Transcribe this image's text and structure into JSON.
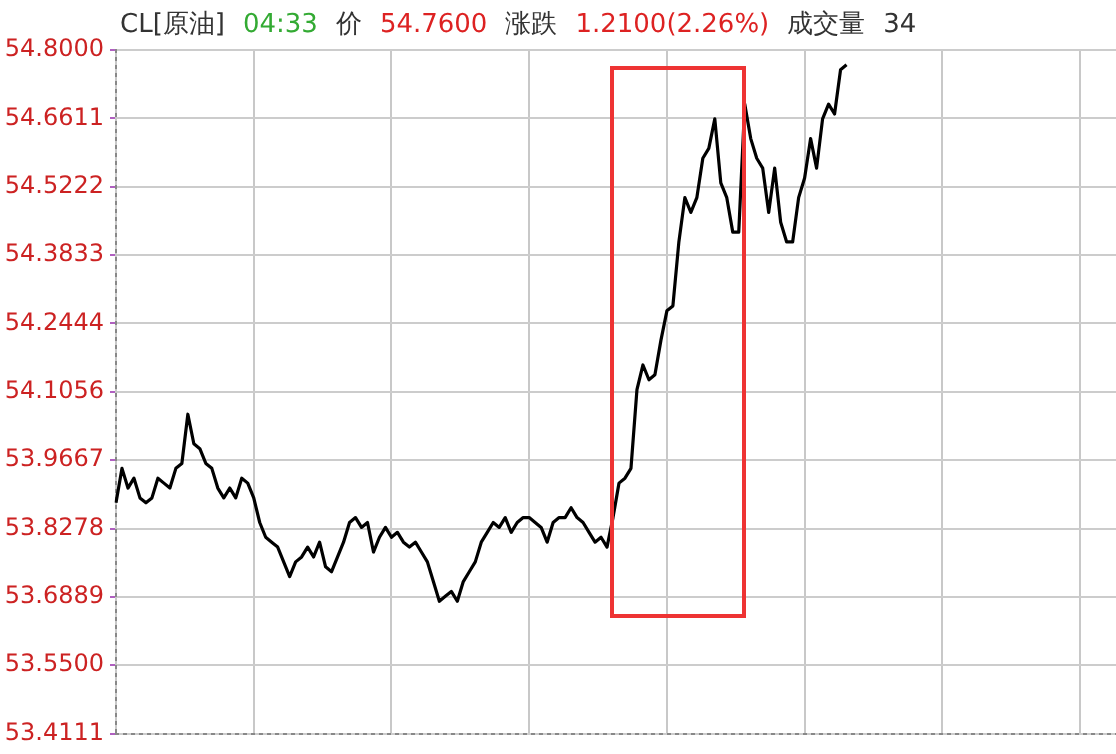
{
  "chart_data": {
    "type": "line",
    "title": "CL[原油]",
    "annotations": [
      "04:33",
      "价",
      "54.7600",
      "涨跌",
      "1.2100(2.26%)",
      "成交量",
      "34"
    ],
    "categories": [
      null,
      null,
      null,
      null,
      null,
      null,
      null,
      null,
      null,
      null,
      null,
      null,
      null,
      null,
      null,
      null,
      null,
      null,
      null,
      null,
      null,
      null,
      null,
      null,
      null,
      null,
      null,
      null,
      null,
      null,
      null,
      null,
      null,
      null,
      null,
      null,
      null,
      null,
      null,
      null,
      null,
      null,
      null,
      null,
      null,
      null,
      null,
      null,
      null,
      null,
      null,
      null,
      null,
      null,
      null,
      null,
      null,
      null,
      null,
      null,
      null,
      null,
      null,
      null,
      null,
      null,
      null,
      null,
      null,
      null,
      null,
      null,
      null,
      null,
      null,
      null,
      null,
      null,
      null,
      null,
      null,
      null,
      null,
      null,
      null,
      null,
      null,
      null,
      null,
      null,
      null,
      null,
      null,
      null,
      null,
      null,
      null,
      null,
      null,
      null,
      null,
      null,
      null,
      null,
      null,
      null,
      null,
      null,
      null,
      null,
      null,
      null,
      null,
      null,
      null,
      null,
      null,
      null,
      null,
      null,
      null,
      null,
      null,
      null,
      null,
      null,
      null,
      null,
      null,
      null,
      null,
      null,
      null,
      null,
      null,
      null,
      null,
      null,
      null,
      null,
      null,
      null,
      null,
      null,
      null,
      null,
      null,
      null,
      null,
      null,
      null,
      null,
      null,
      null,
      null,
      null,
      null,
      null,
      null,
      null,
      null,
      null,
      null,
      null,
      null,
      null,
      null,
      null
    ],
    "series": [
      {
        "color": "#000000",
        "values": [
          53.88,
          53.95,
          53.91,
          53.93,
          53.89,
          53.88,
          53.89,
          53.93,
          53.92,
          53.91,
          53.95,
          53.96,
          54.06,
          54.0,
          53.99,
          53.96,
          53.95,
          53.91,
          53.89,
          53.91,
          53.89,
          53.93,
          53.92,
          53.89,
          53.84,
          53.81,
          53.8,
          53.79,
          53.76,
          53.73,
          53.76,
          53.77,
          53.79,
          53.77,
          53.8,
          53.75,
          53.74,
          53.77,
          53.8,
          53.84,
          53.85,
          53.83,
          53.84,
          53.78,
          53.81,
          53.83,
          53.81,
          53.82,
          53.8,
          53.79,
          53.8,
          53.78,
          53.76,
          53.72,
          53.68,
          53.69,
          53.7,
          53.68,
          53.72,
          53.74,
          53.76,
          53.8,
          53.82,
          53.84,
          53.83,
          53.85,
          53.82,
          53.84,
          53.85,
          53.85,
          53.84,
          53.83,
          53.8,
          53.84,
          53.85,
          53.85,
          53.87,
          53.85,
          53.84,
          53.82,
          53.8,
          53.81,
          53.79,
          53.85,
          53.92,
          53.93,
          53.95,
          54.11,
          54.16,
          54.13,
          54.14,
          54.21,
          54.27,
          54.28,
          54.41,
          54.5,
          54.47,
          54.5,
          54.58,
          54.6,
          54.66,
          54.53,
          54.5,
          54.43,
          54.43,
          54.69,
          54.62,
          54.58,
          54.56,
          54.47,
          54.56,
          54.45,
          54.41,
          54.41,
          54.5,
          54.54,
          54.62,
          54.56,
          54.66,
          54.69,
          54.67,
          54.76,
          54.77,
          null,
          null,
          null,
          null,
          null,
          null,
          null,
          null,
          null,
          null,
          null,
          null,
          null,
          null,
          null,
          null,
          null,
          null,
          null,
          null,
          null,
          null,
          null,
          null,
          null,
          null,
          null,
          null,
          null,
          null,
          null,
          null,
          null,
          null,
          null,
          null,
          null,
          null,
          null,
          null,
          null,
          null,
          null,
          null,
          null
        ]
      }
    ],
    "ylim": [
      53.4111,
      54.8
    ],
    "yticks": [
      {
        "value": 54.8,
        "label": "54.8000"
      },
      54.6611,
      54.5222,
      54.3833,
      54.2444,
      54.1056,
      53.9667,
      53.8278,
      53.6889,
      {
        "value": 53.55,
        "label": "53.5500"
      },
      53.4111
    ],
    "grid": true,
    "legend": false,
    "marker": "none",
    "line_style": "solid",
    "tick_labels": "y"
  }
}
